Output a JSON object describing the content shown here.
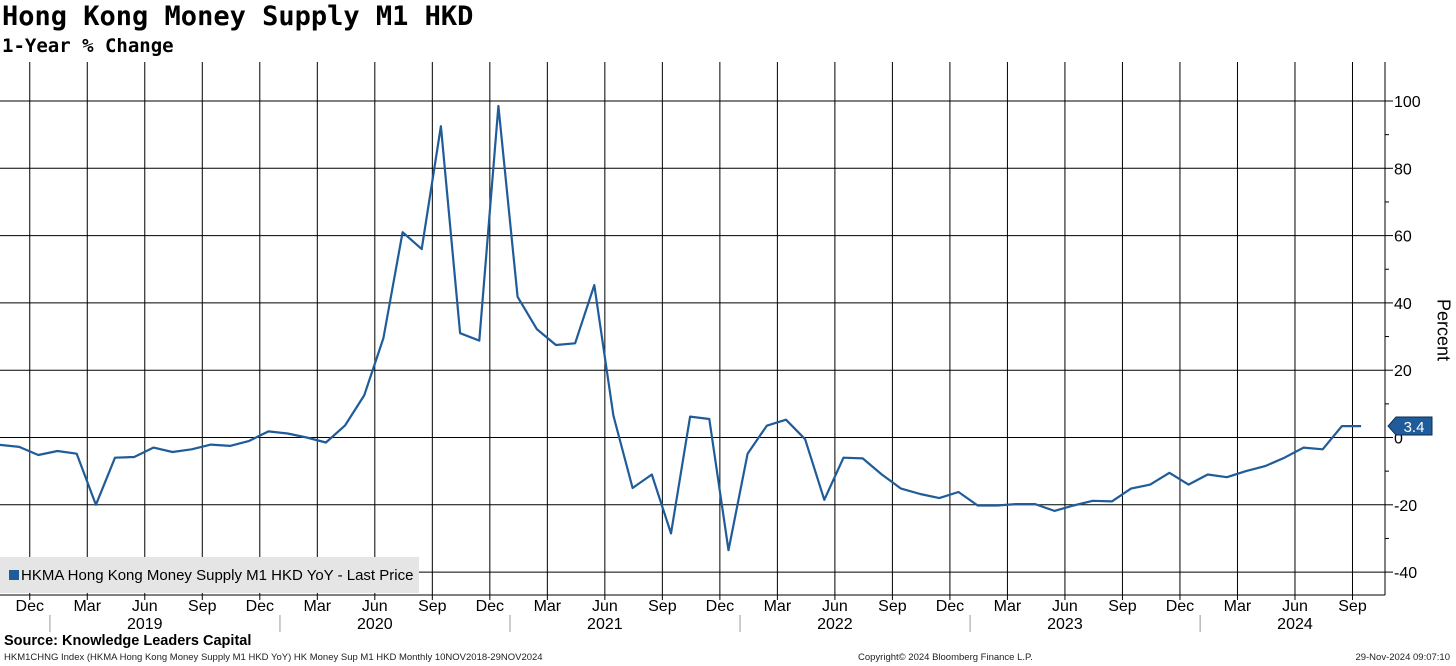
{
  "title": "Hong Kong Money Supply M1 HKD",
  "subtitle": "1-Year % Change",
  "source": "Source: Knowledge Leaders Capital",
  "footer": {
    "left": "HKM1CHNG Index (HKMA Hong Kong Money Supply M1 HKD YoY) HK Money Sup M1 HKD  Monthly 10NOV2018-29NOV2024",
    "middle": "Copyright© 2024 Bloomberg Finance L.P.",
    "right": "29-Nov-2024 09:07:10"
  },
  "colors": {
    "series": "#1f5c99",
    "grid": "#000000",
    "background": "#ffffff",
    "legend_bg": "#e5e5e5"
  },
  "chart_data": {
    "type": "line",
    "title": "Hong Kong Money Supply M1 HKD",
    "subtitle": "1-Year % Change",
    "ylabel": "Percent",
    "ylim": [
      -44,
      111
    ],
    "yticks": [
      100,
      80,
      60,
      40,
      20,
      0,
      -20,
      -40
    ],
    "y_tick_labels": [
      "100",
      "80",
      "60",
      "40",
      "20",
      "0",
      "-20",
      "-40"
    ],
    "y_axis_side": "right",
    "grid": true,
    "legend_position": "bottom-left",
    "last_price_label": "3.4",
    "month_labels": [
      "Dec",
      "Mar",
      "Jun",
      "Sep",
      "Dec",
      "Mar",
      "Jun",
      "Sep",
      "Dec",
      "Mar",
      "Jun",
      "Sep",
      "Dec",
      "Mar",
      "Jun",
      "Sep",
      "Dec",
      "Mar",
      "Jun",
      "Sep",
      "Dec",
      "Mar",
      "Jun",
      "Sep"
    ],
    "month_label_dates": [
      "2018-12",
      "2019-03",
      "2019-06",
      "2019-09",
      "2019-12",
      "2020-03",
      "2020-06",
      "2020-09",
      "2020-12",
      "2021-03",
      "2021-06",
      "2021-09",
      "2021-12",
      "2022-03",
      "2022-06",
      "2022-09",
      "2022-12",
      "2023-03",
      "2023-06",
      "2023-09",
      "2023-12",
      "2024-03",
      "2024-06",
      "2024-09"
    ],
    "year_labels": [
      "2019",
      "2020",
      "2021",
      "2022",
      "2023",
      "2024"
    ],
    "year_label_dates": [
      "2019-06",
      "2020-06",
      "2021-06",
      "2022-06",
      "2023-06",
      "2024-06"
    ],
    "year_separator_dates": [
      "2019-01",
      "2020-01",
      "2021-01",
      "2022-01",
      "2023-01",
      "2024-01"
    ],
    "series": [
      {
        "name": "HKMA Hong Kong Money Supply M1 HKD YoY - Last Price",
        "x": [
          "2018-11",
          "2018-12",
          "2019-01",
          "2019-02",
          "2019-03",
          "2019-04",
          "2019-05",
          "2019-06",
          "2019-07",
          "2019-08",
          "2019-09",
          "2019-10",
          "2019-11",
          "2019-12",
          "2020-01",
          "2020-02",
          "2020-03",
          "2020-04",
          "2020-05",
          "2020-06",
          "2020-07",
          "2020-08",
          "2020-09",
          "2020-10",
          "2020-11",
          "2020-12",
          "2021-01",
          "2021-02",
          "2021-03",
          "2021-04",
          "2021-05",
          "2021-06",
          "2021-07",
          "2021-08",
          "2021-09",
          "2021-10",
          "2021-11",
          "2021-12",
          "2022-01",
          "2022-02",
          "2022-03",
          "2022-04",
          "2022-05",
          "2022-06",
          "2022-07",
          "2022-08",
          "2022-09",
          "2022-10",
          "2022-11",
          "2022-12",
          "2023-01",
          "2023-02",
          "2023-03",
          "2023-04",
          "2023-05",
          "2023-06",
          "2023-07",
          "2023-08",
          "2023-09",
          "2023-10",
          "2023-11",
          "2023-12",
          "2024-01",
          "2024-02",
          "2024-03",
          "2024-04",
          "2024-05",
          "2024-06",
          "2024-07",
          "2024-08",
          "2024-09",
          "2024-10"
        ],
        "values": [
          -2.2,
          -2.8,
          -5.2,
          -4.0,
          -4.8,
          -20.0,
          -6.0,
          -5.8,
          -3.0,
          -4.3,
          -3.5,
          -2.1,
          -2.5,
          -1.0,
          1.8,
          1.2,
          0.0,
          -1.5,
          3.6,
          12.5,
          29.5,
          61.0,
          56.0,
          92.5,
          31.0,
          28.8,
          98.5,
          41.8,
          32.2,
          27.5,
          28.0,
          45.3,
          6.5,
          -15.0,
          -11.0,
          -28.5,
          6.2,
          5.5,
          -33.5,
          -4.8,
          3.5,
          5.3,
          -0.5,
          -18.5,
          -6.0,
          -6.2,
          -11.0,
          -15.2,
          -16.8,
          -18.0,
          -16.2,
          -20.2,
          -20.2,
          -19.8,
          -19.8,
          -21.8,
          -20.2,
          -18.8,
          -19.0,
          -15.2,
          -14.0,
          -10.5,
          -14.0,
          -11.0,
          -11.8,
          -10.0,
          -8.5,
          -6.0,
          -3.0,
          -3.5,
          3.4,
          3.4
        ]
      }
    ]
  }
}
